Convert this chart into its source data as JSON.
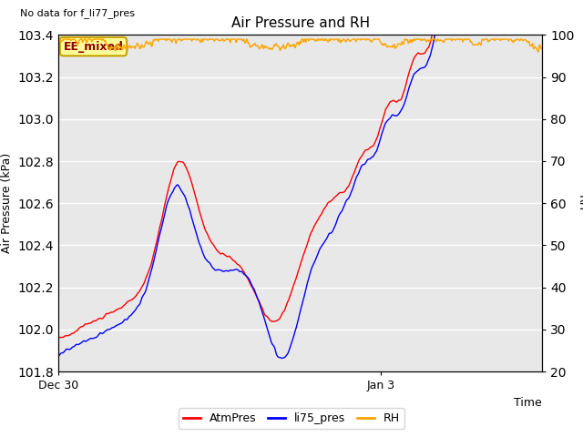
{
  "title": "Air Pressure and RH",
  "top_left_text": "No data for f_li77_pres",
  "annotation_text": "EE_mixed",
  "xlabel": "Time",
  "ylabel_left": "Air Pressure (kPa)",
  "ylabel_right": "RH",
  "ylim_left": [
    101.8,
    103.4
  ],
  "ylim_right": [
    20,
    100
  ],
  "yticks_left": [
    101.8,
    102.0,
    102.2,
    102.4,
    102.6,
    102.8,
    103.0,
    103.2,
    103.4
  ],
  "yticks_right": [
    20,
    30,
    40,
    50,
    60,
    70,
    80,
    90,
    100
  ],
  "xtick_labels": [
    "Dec 30",
    "Jan 3"
  ],
  "color_red": "#FF0000",
  "color_blue": "#0000FF",
  "color_orange": "#FFA500",
  "legend_labels": [
    "AtmPres",
    "li75_pres",
    "RH"
  ],
  "plot_bg_color": "#E8E8E8",
  "grid_color": "#FFFFFF",
  "annotation_bg": "#FFFF99",
  "annotation_border": "#C8A000",
  "fig_bg_color": "#FFFFFF",
  "total_hours": 144,
  "dec30_tick": 0,
  "jan3_tick": 96
}
